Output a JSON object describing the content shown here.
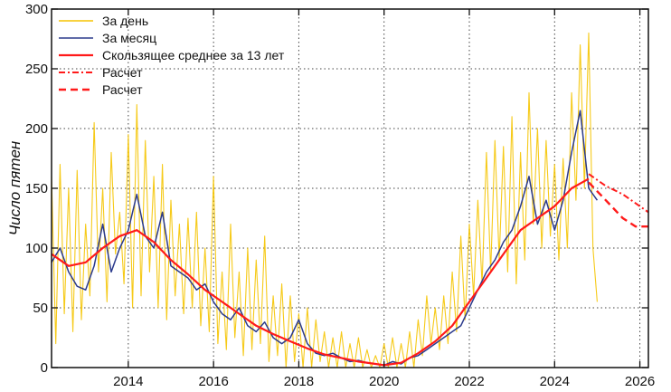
{
  "chart_data": {
    "type": "line",
    "ylabel": "Число пятен",
    "xlabel": "",
    "xlim": [
      2012.2,
      2026.2
    ],
    "ylim": [
      0,
      300
    ],
    "xticks": [
      2014,
      2016,
      2018,
      2020,
      2022,
      2024,
      2026
    ],
    "yticks": [
      0,
      50,
      100,
      150,
      200,
      250,
      300
    ],
    "xtick_labels": [
      "2014",
      "2016",
      "2018",
      "2020",
      "2022",
      "2024",
      "2026"
    ],
    "ytick_labels": [
      "0",
      "50",
      "100",
      "150",
      "200",
      "250",
      "300"
    ],
    "grid": true,
    "legend_position": "top-left",
    "colors": {
      "daily": "#f5c400",
      "monthly": "#2b3a8c",
      "smoothed": "#ff1a1a",
      "forecast": "#ff1a1a"
    },
    "series": [
      {
        "name": "За день",
        "style": "daily",
        "x": [
          2012.2,
          2012.3,
          2012.4,
          2012.5,
          2012.6,
          2012.7,
          2012.8,
          2012.9,
          2013.0,
          2013.1,
          2013.2,
          2013.3,
          2013.4,
          2013.5,
          2013.6,
          2013.7,
          2013.8,
          2013.9,
          2014.0,
          2014.1,
          2014.2,
          2014.3,
          2014.4,
          2014.5,
          2014.6,
          2014.7,
          2014.8,
          2014.9,
          2015.0,
          2015.1,
          2015.2,
          2015.3,
          2015.4,
          2015.5,
          2015.6,
          2015.7,
          2015.8,
          2015.9,
          2016.0,
          2016.1,
          2016.2,
          2016.3,
          2016.4,
          2016.5,
          2016.6,
          2016.7,
          2016.8,
          2016.9,
          2017.0,
          2017.1,
          2017.2,
          2017.3,
          2017.4,
          2017.5,
          2017.6,
          2017.7,
          2017.8,
          2017.9,
          2018.0,
          2018.1,
          2018.2,
          2018.3,
          2018.4,
          2018.5,
          2018.6,
          2018.7,
          2018.8,
          2018.9,
          2019.0,
          2019.1,
          2019.2,
          2019.3,
          2019.4,
          2019.5,
          2019.6,
          2019.7,
          2019.8,
          2019.9,
          2020.0,
          2020.1,
          2020.2,
          2020.3,
          2020.4,
          2020.5,
          2020.6,
          2020.7,
          2020.8,
          2020.9,
          2021.0,
          2021.1,
          2021.2,
          2021.3,
          2021.4,
          2021.5,
          2021.6,
          2021.7,
          2021.8,
          2021.9,
          2022.0,
          2022.1,
          2022.2,
          2022.3,
          2022.4,
          2022.5,
          2022.6,
          2022.7,
          2022.8,
          2022.9,
          2023.0,
          2023.1,
          2023.2,
          2023.3,
          2023.4,
          2023.5,
          2023.6,
          2023.7,
          2023.8,
          2023.9,
          2024.0,
          2024.1,
          2024.2,
          2024.3,
          2024.4,
          2024.5,
          2024.6,
          2024.7,
          2024.8,
          2024.9,
          2025.0
        ],
        "y": [
          160,
          20,
          170,
          45,
          150,
          30,
          165,
          40,
          120,
          60,
          205,
          80,
          150,
          55,
          180,
          95,
          130,
          70,
          195,
          50,
          220,
          60,
          190,
          80,
          160,
          50,
          170,
          40,
          140,
          60,
          120,
          45,
          125,
          50,
          130,
          35,
          100,
          30,
          160,
          20,
          80,
          15,
          120,
          25,
          80,
          10,
          100,
          15,
          90,
          20,
          110,
          5,
          60,
          10,
          70,
          0,
          60,
          5,
          45,
          0,
          50,
          0,
          40,
          5,
          30,
          0,
          25,
          0,
          30,
          0,
          20,
          0,
          25,
          0,
          15,
          0,
          10,
          0,
          20,
          0,
          25,
          0,
          20,
          0,
          30,
          0,
          40,
          10,
          60,
          20,
          50,
          15,
          60,
          20,
          80,
          30,
          110,
          40,
          120,
          60,
          140,
          70,
          180,
          80,
          190,
          90,
          185,
          80,
          210,
          70,
          180,
          90,
          230,
          120,
          200,
          100,
          190,
          110,
          170,
          90,
          175,
          100,
          230,
          140,
          270,
          150,
          280,
          100,
          55
        ]
      },
      {
        "name": "За месяц",
        "style": "monthly",
        "x": [
          2012.2,
          2012.4,
          2012.6,
          2012.8,
          2013.0,
          2013.2,
          2013.4,
          2013.6,
          2013.8,
          2014.0,
          2014.2,
          2014.4,
          2014.6,
          2014.8,
          2015.0,
          2015.2,
          2015.4,
          2015.6,
          2015.8,
          2016.0,
          2016.2,
          2016.4,
          2016.6,
          2016.8,
          2017.0,
          2017.2,
          2017.4,
          2017.6,
          2017.8,
          2018.0,
          2018.2,
          2018.4,
          2018.6,
          2018.8,
          2019.0,
          2019.2,
          2019.4,
          2019.6,
          2019.8,
          2020.0,
          2020.2,
          2020.4,
          2020.6,
          2020.8,
          2021.0,
          2021.2,
          2021.4,
          2021.6,
          2021.8,
          2022.0,
          2022.2,
          2022.4,
          2022.6,
          2022.8,
          2023.0,
          2023.2,
          2023.4,
          2023.6,
          2023.8,
          2024.0,
          2024.2,
          2024.4,
          2024.6,
          2024.8,
          2025.0
        ],
        "y": [
          88,
          100,
          80,
          68,
          65,
          85,
          120,
          80,
          100,
          115,
          145,
          110,
          100,
          130,
          85,
          80,
          75,
          65,
          70,
          55,
          45,
          40,
          50,
          35,
          30,
          38,
          25,
          20,
          25,
          40,
          20,
          12,
          10,
          12,
          8,
          5,
          6,
          4,
          3,
          2,
          5,
          3,
          8,
          10,
          15,
          20,
          25,
          30,
          35,
          50,
          65,
          80,
          90,
          105,
          115,
          135,
          160,
          120,
          140,
          115,
          140,
          180,
          215,
          150,
          140
        ]
      },
      {
        "name": "Скользящее среднее за 13 лет",
        "style": "smoothed",
        "x": [
          2012.2,
          2012.6,
          2013.0,
          2013.4,
          2013.8,
          2014.2,
          2014.6,
          2015.0,
          2015.4,
          2015.8,
          2016.2,
          2016.6,
          2017.0,
          2017.4,
          2017.8,
          2018.2,
          2018.6,
          2019.0,
          2019.4,
          2019.8,
          2020.0,
          2020.4,
          2020.8,
          2021.2,
          2021.6,
          2022.0,
          2022.4,
          2022.8,
          2023.2,
          2023.6,
          2024.0,
          2024.4,
          2024.8
        ],
        "y": [
          95,
          85,
          88,
          100,
          110,
          115,
          105,
          90,
          78,
          65,
          55,
          45,
          35,
          28,
          22,
          16,
          11,
          8,
          5,
          3,
          2,
          4,
          12,
          22,
          35,
          55,
          75,
          95,
          115,
          125,
          135,
          150,
          158
        ]
      },
      {
        "name": "Расчет",
        "style": "forecast-dashdot",
        "x": [
          2024.8,
          2025.2,
          2025.6,
          2026.2
        ],
        "y": [
          162,
          152,
          145,
          130
        ]
      },
      {
        "name": "Расчет",
        "style": "forecast-dash",
        "x": [
          2024.8,
          2025.2,
          2025.6,
          2025.9,
          2026.2
        ],
        "y": [
          155,
          140,
          125,
          118,
          118
        ]
      }
    ]
  }
}
